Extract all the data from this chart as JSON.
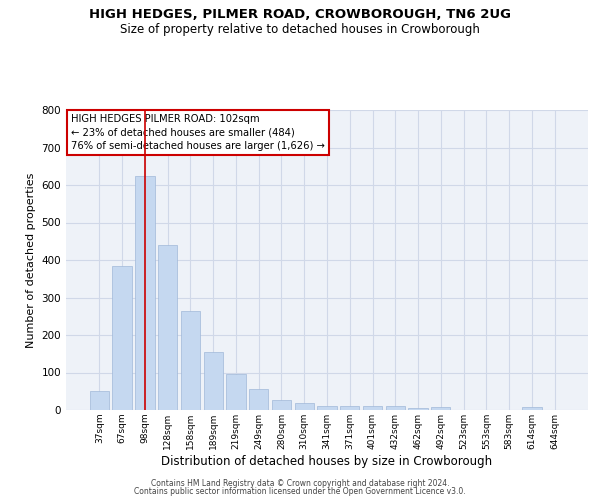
{
  "title": "HIGH HEDGES, PILMER ROAD, CROWBOROUGH, TN6 2UG",
  "subtitle": "Size of property relative to detached houses in Crowborough",
  "xlabel": "Distribution of detached houses by size in Crowborough",
  "ylabel": "Number of detached properties",
  "categories": [
    "37sqm",
    "67sqm",
    "98sqm",
    "128sqm",
    "158sqm",
    "189sqm",
    "219sqm",
    "249sqm",
    "280sqm",
    "310sqm",
    "341sqm",
    "371sqm",
    "401sqm",
    "432sqm",
    "462sqm",
    "492sqm",
    "523sqm",
    "553sqm",
    "583sqm",
    "614sqm",
    "644sqm"
  ],
  "values": [
    50,
    385,
    625,
    440,
    265,
    155,
    97,
    55,
    28,
    18,
    10,
    10,
    10,
    10,
    5,
    8,
    0,
    0,
    0,
    8,
    0
  ],
  "bar_color": "#c5d8f0",
  "bar_edge_color": "#a0b8d8",
  "grid_color": "#d0d8e8",
  "background_color": "#eef2f8",
  "vline_x": 2,
  "vline_color": "#cc0000",
  "annotation_text": "HIGH HEDGES PILMER ROAD: 102sqm\n← 23% of detached houses are smaller (484)\n76% of semi-detached houses are larger (1,626) →",
  "annotation_box_color": "#ffffff",
  "annotation_box_edge": "#cc0000",
  "ylim": [
    0,
    800
  ],
  "yticks": [
    0,
    100,
    200,
    300,
    400,
    500,
    600,
    700,
    800
  ],
  "footer1": "Contains HM Land Registry data © Crown copyright and database right 2024.",
  "footer2": "Contains public sector information licensed under the Open Government Licence v3.0."
}
